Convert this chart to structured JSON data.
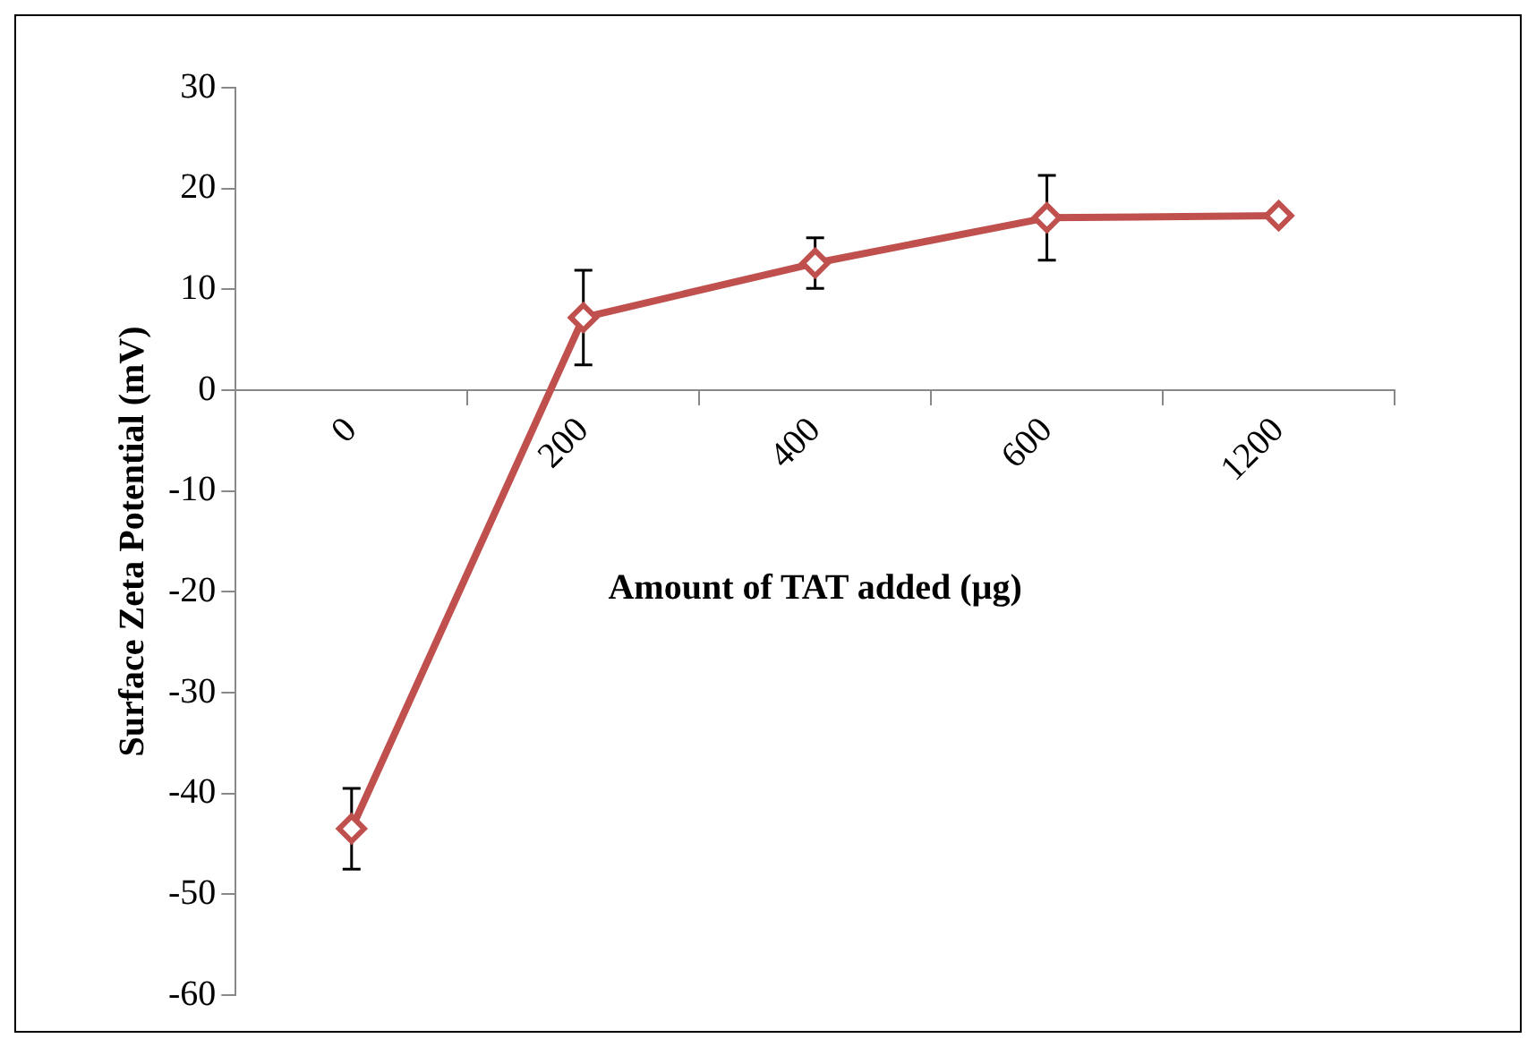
{
  "chart_data": {
    "type": "line",
    "xlabel": "Amount of TAT added (µg)",
    "ylabel": "Surface Zeta Potential (mV)",
    "categories": [
      "0",
      "200",
      "400",
      "600",
      "1200"
    ],
    "series": [
      {
        "color": "#c0504d",
        "values": [
          -43.5,
          7.2,
          12.6,
          17.1,
          17.3
        ],
        "errors": [
          4,
          4.7,
          2.5,
          4.2,
          null
        ]
      }
    ],
    "ylim": [
      -60,
      30
    ],
    "yticks": [
      -60,
      -50,
      -40,
      -30,
      -20,
      -10,
      0,
      10,
      20,
      30
    ],
    "grid": false,
    "legend": false,
    "marker": "diamond",
    "line_style": "solid"
  }
}
